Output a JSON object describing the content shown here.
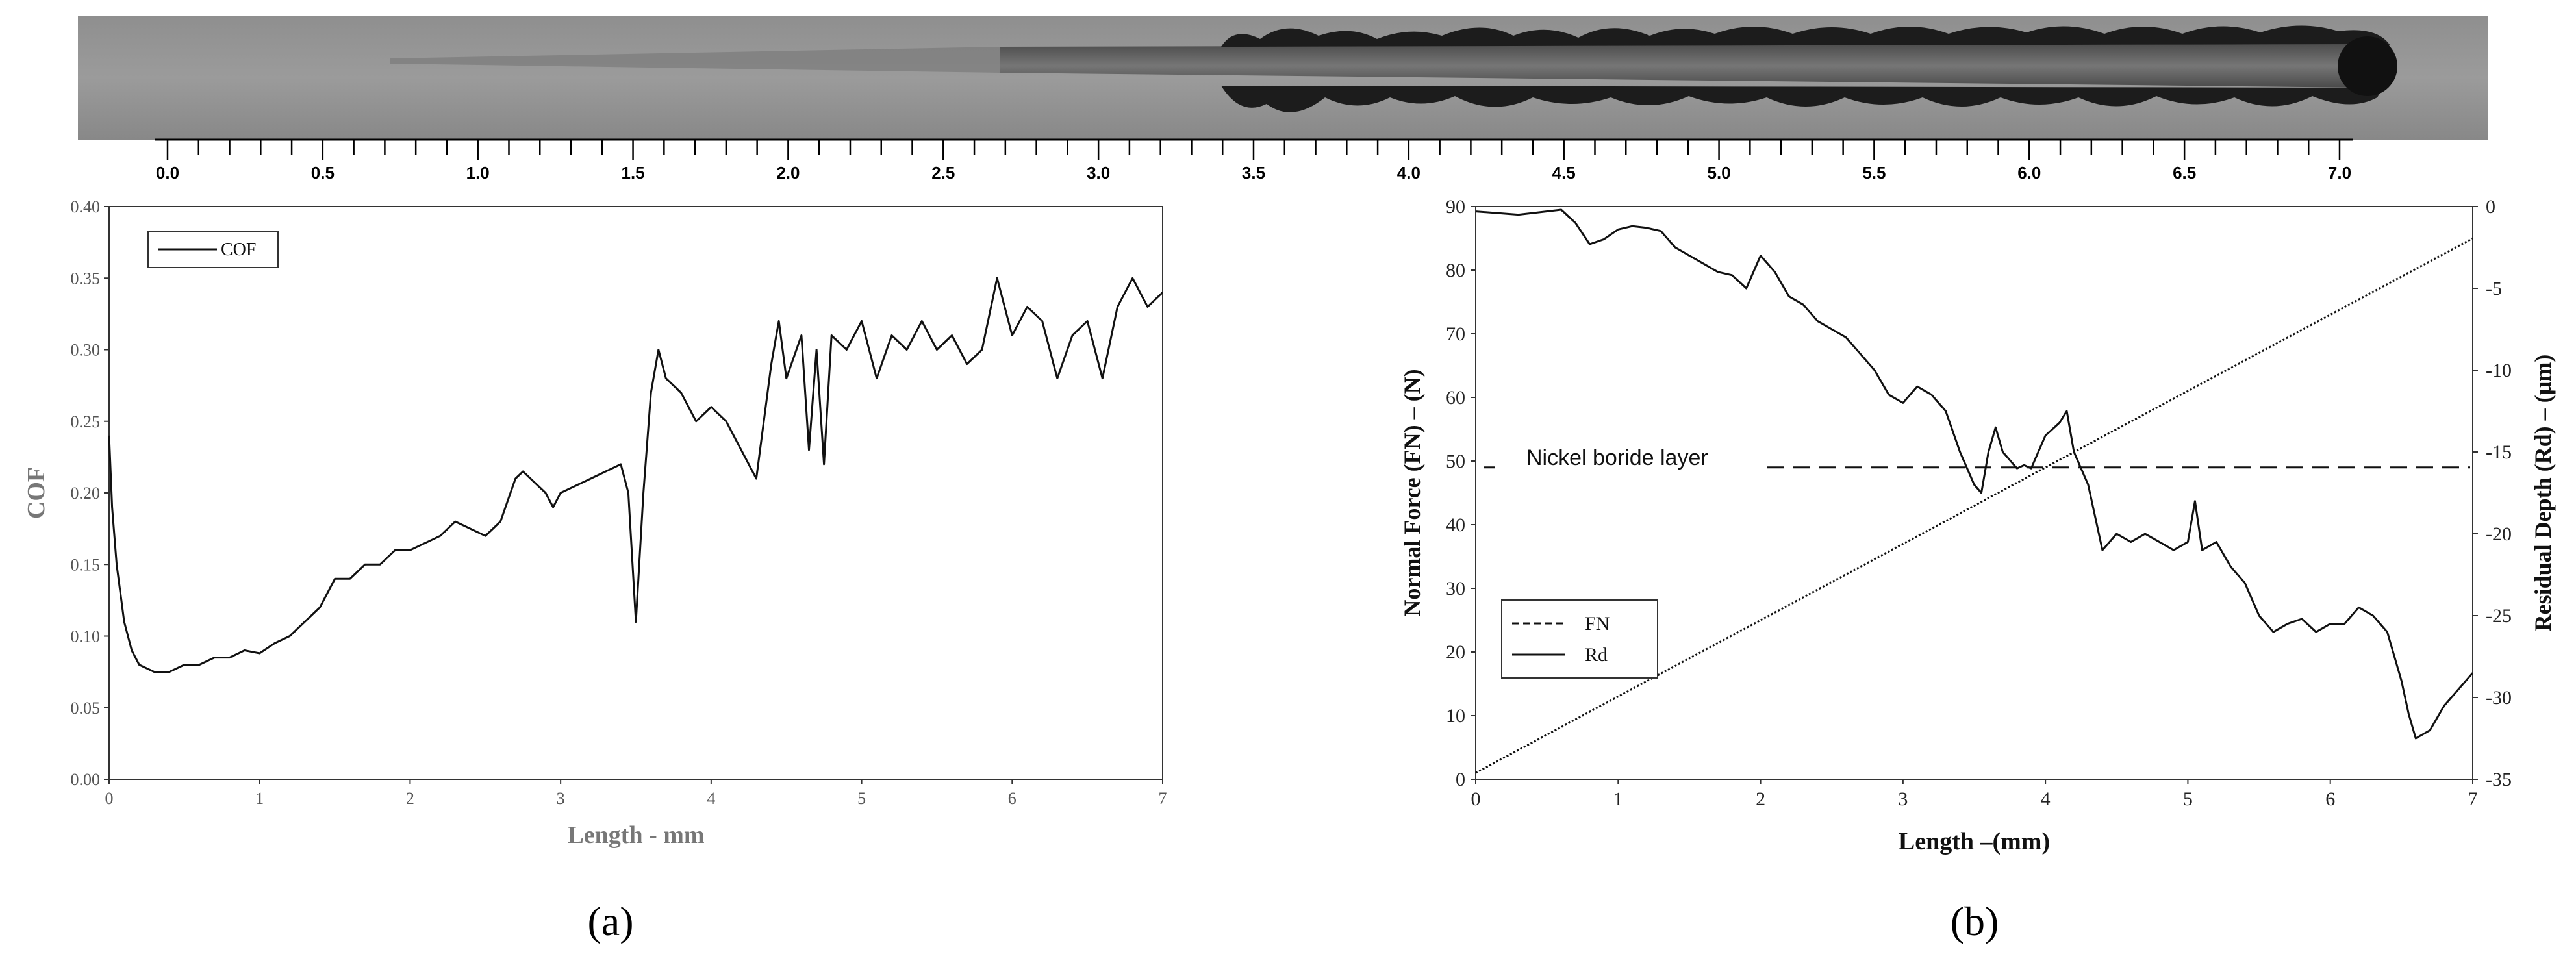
{
  "scale_bar": {
    "labels": [
      "0.0",
      "0.5",
      "1.0",
      "1.5",
      "2.0",
      "2.5",
      "3.0",
      "3.5",
      "4.0",
      "4.5",
      "5.0",
      "5.5",
      "6.0",
      "6.5",
      "7.0"
    ],
    "min": 0.0,
    "max": 7.0,
    "minor_step": 0.1
  },
  "micrograph": {
    "description_icon": "scratch-track-image"
  },
  "panel_labels": {
    "a": "(a)",
    "b": "(b)"
  },
  "chart_data": [
    {
      "id": "a",
      "type": "line",
      "title": "",
      "xlabel": "Length - mm",
      "ylabel": "COF",
      "xlim": [
        0,
        7
      ],
      "ylim": [
        0,
        0.4
      ],
      "xticks": [
        "0",
        "1",
        "2",
        "3",
        "4",
        "5",
        "6",
        "7"
      ],
      "yticks": [
        "0.00",
        "0.05",
        "0.10",
        "0.15",
        "0.20",
        "0.25",
        "0.30",
        "0.35",
        "0.40"
      ],
      "legend": {
        "position": "top-left",
        "entries": [
          "COF"
        ]
      },
      "grid": false,
      "series": [
        {
          "name": "COF",
          "color": "#111111",
          "x": [
            0,
            0.02,
            0.05,
            0.1,
            0.15,
            0.2,
            0.3,
            0.4,
            0.5,
            0.6,
            0.7,
            0.8,
            0.9,
            1.0,
            1.1,
            1.2,
            1.3,
            1.4,
            1.5,
            1.6,
            1.7,
            1.8,
            1.9,
            2.0,
            2.1,
            2.2,
            2.3,
            2.4,
            2.5,
            2.6,
            2.7,
            2.75,
            2.8,
            2.9,
            2.95,
            3.0,
            3.1,
            3.2,
            3.3,
            3.4,
            3.45,
            3.5,
            3.55,
            3.6,
            3.65,
            3.7,
            3.8,
            3.9,
            4.0,
            4.1,
            4.2,
            4.3,
            4.4,
            4.45,
            4.5,
            4.6,
            4.65,
            4.7,
            4.75,
            4.8,
            4.9,
            5.0,
            5.1,
            5.2,
            5.3,
            5.4,
            5.5,
            5.6,
            5.7,
            5.8,
            5.9,
            6.0,
            6.1,
            6.2,
            6.3,
            6.4,
            6.5,
            6.6,
            6.7,
            6.8,
            6.9,
            7.0
          ],
          "values": [
            0.24,
            0.19,
            0.15,
            0.11,
            0.09,
            0.08,
            0.075,
            0.075,
            0.08,
            0.08,
            0.085,
            0.085,
            0.09,
            0.088,
            0.095,
            0.1,
            0.11,
            0.12,
            0.14,
            0.14,
            0.15,
            0.15,
            0.16,
            0.16,
            0.165,
            0.17,
            0.18,
            0.175,
            0.17,
            0.18,
            0.21,
            0.215,
            0.21,
            0.2,
            0.19,
            0.2,
            0.205,
            0.21,
            0.215,
            0.22,
            0.2,
            0.11,
            0.2,
            0.27,
            0.3,
            0.28,
            0.27,
            0.25,
            0.26,
            0.25,
            0.23,
            0.21,
            0.29,
            0.32,
            0.28,
            0.31,
            0.23,
            0.3,
            0.22,
            0.31,
            0.3,
            0.32,
            0.28,
            0.31,
            0.3,
            0.32,
            0.3,
            0.31,
            0.29,
            0.3,
            0.35,
            0.31,
            0.33,
            0.32,
            0.28,
            0.31,
            0.32,
            0.28,
            0.33,
            0.35,
            0.33,
            0.34
          ]
        }
      ]
    },
    {
      "id": "b",
      "type": "line",
      "title": "",
      "xlabel": "Length –(mm)",
      "ylabel": "Normal Force (FN) – (N)",
      "y2label": "Residual Depth (Rd) – (µm)",
      "xlim": [
        0,
        7
      ],
      "ylim": [
        0,
        90
      ],
      "y2lim": [
        -35,
        0
      ],
      "xticks": [
        "0",
        "1",
        "2",
        "3",
        "4",
        "5",
        "6",
        "7"
      ],
      "yticks": [
        "0",
        "10",
        "20",
        "30",
        "40",
        "50",
        "60",
        "70",
        "80",
        "90"
      ],
      "y2ticks": [
        "0",
        "-5",
        "-10",
        "-15",
        "-20",
        "-25",
        "-30",
        "-35"
      ],
      "legend": {
        "position": "lower-left",
        "entries": [
          "FN",
          "Rd"
        ]
      },
      "grid": false,
      "annotation": {
        "text": "Nickel boride layer",
        "y": 49
      },
      "series": [
        {
          "name": "FN",
          "axis": "left",
          "style": "dotted",
          "color": "#111111",
          "x": [
            0,
            7
          ],
          "values": [
            1,
            85
          ]
        },
        {
          "name": "Rd",
          "axis": "right",
          "style": "solid",
          "color": "#111111",
          "x": [
            0,
            0.3,
            0.6,
            0.7,
            0.8,
            0.9,
            1.0,
            1.1,
            1.2,
            1.3,
            1.4,
            1.5,
            1.6,
            1.7,
            1.8,
            1.9,
            2.0,
            2.1,
            2.2,
            2.3,
            2.4,
            2.5,
            2.6,
            2.7,
            2.8,
            2.9,
            3.0,
            3.1,
            3.2,
            3.3,
            3.4,
            3.5,
            3.55,
            3.6,
            3.65,
            3.7,
            3.8,
            3.85,
            3.9,
            4.0,
            4.1,
            4.15,
            4.2,
            4.3,
            4.4,
            4.5,
            4.6,
            4.7,
            4.8,
            4.9,
            5.0,
            5.05,
            5.1,
            5.2,
            5.3,
            5.4,
            5.5,
            5.6,
            5.7,
            5.8,
            5.9,
            6.0,
            6.1,
            6.2,
            6.3,
            6.4,
            6.5,
            6.55,
            6.6,
            6.7,
            6.8,
            6.9,
            7.0
          ],
          "values": [
            -0.3,
            -0.5,
            -0.2,
            -1,
            -2.3,
            -2,
            -1.4,
            -1.2,
            -1.3,
            -1.5,
            -2.5,
            -3,
            -3.5,
            -4,
            -4.2,
            -5,
            -3,
            -4,
            -5.5,
            -6,
            -7,
            -7.5,
            -8,
            -9,
            -10,
            -11.5,
            -12,
            -11,
            -11.5,
            -12.5,
            -15,
            -17,
            -17.5,
            -15,
            -13.5,
            -15,
            -16,
            -15.8,
            -16,
            -14,
            -13.2,
            -12.5,
            -15,
            -17,
            -21,
            -20,
            -20.5,
            -20,
            -20.5,
            -21,
            -20.5,
            -18,
            -21,
            -20.5,
            -22,
            -23,
            -25,
            -26,
            -25.5,
            -25.2,
            -26,
            -25.5,
            -25.5,
            -24.5,
            -25,
            -26,
            -29,
            -31,
            -32.5,
            -32,
            -30.5,
            -29.5,
            -28.5
          ]
        }
      ]
    }
  ]
}
